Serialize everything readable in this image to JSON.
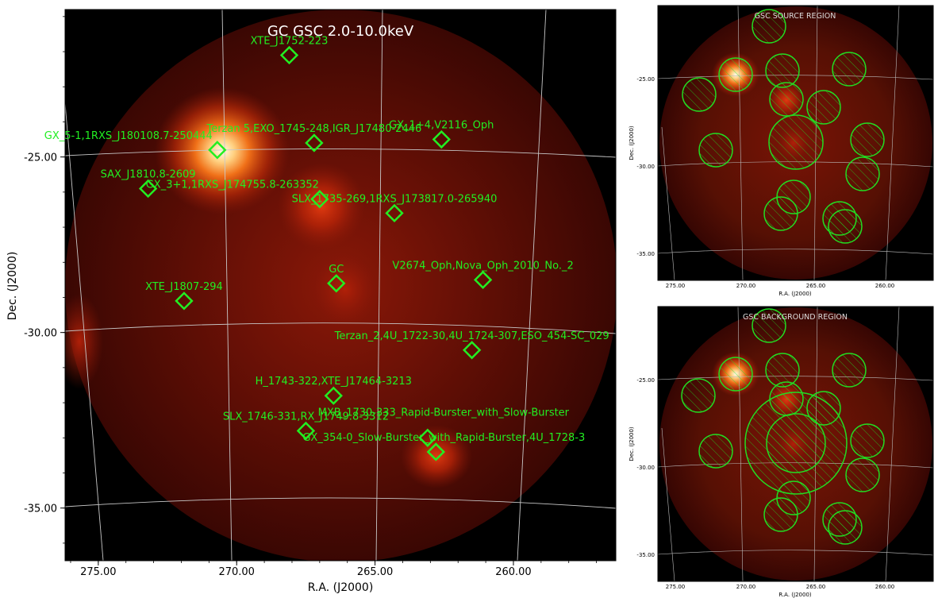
{
  "chart_data": [
    {
      "type": "scatter",
      "title": "GC GSC 2.0-10.0keV",
      "xlabel": "R.A. (J2000)",
      "ylabel": "Dec. (J2000)",
      "xlim": [
        276.2,
        256.3
      ],
      "ylim": [
        -36.5,
        -20.8
      ],
      "x_ticks": [
        "275.00",
        "270.00",
        "265.00",
        "260.00"
      ],
      "y_ticks": [
        "-25.00",
        "-30.00",
        "-35.00"
      ],
      "sources": [
        {
          "label": "XTE_J1752-223",
          "ra": 268.1,
          "dec": -22.1
        },
        {
          "label": "Terzan 5,EXO_1745-248,IGR_J17480-2446",
          "ra": 267.2,
          "dec": -24.6
        },
        {
          "label": "GX_1+4,V2116_Oph",
          "ra": 262.6,
          "dec": -24.5
        },
        {
          "label": "GX_5-1,1RXS_J180108.7-250444",
          "ra": 270.7,
          "dec": -24.8
        },
        {
          "label": "SAX_J1810.8-2609",
          "ra": 273.2,
          "dec": -25.9
        },
        {
          "label": "GX_3+1,1RXS_J174755.8-263352",
          "ra": 267.0,
          "dec": -26.2
        },
        {
          "label": "SLX_1735-269,1RXS_J173817.0-265940",
          "ra": 264.3,
          "dec": -26.6
        },
        {
          "label": "GC",
          "ra": 266.4,
          "dec": -28.6
        },
        {
          "label": "V2674_Oph,Nova_Oph_2010_No._2",
          "ra": 261.1,
          "dec": -28.5
        },
        {
          "label": "XTE_J1807-294",
          "ra": 271.9,
          "dec": -29.1
        },
        {
          "label": "Terzan_2,4U_1722-30,4U_1724-307,ESO_454-SC_029",
          "ra": 261.5,
          "dec": -30.5
        },
        {
          "label": "H_1743-322,XTE_J17464-3213",
          "ra": 266.5,
          "dec": -31.8
        },
        {
          "label": "SLX_1746-331,RX_J1749.8-3312",
          "ra": 267.5,
          "dec": -32.8
        },
        {
          "label": "MXB_1730-333_Rapid-Burster_with_Slow-Burster",
          "ra": 263.1,
          "dec": -33.0
        },
        {
          "label": "GX_354-0_Slow-Burster_with_Rapid-Burster,4U_1728-3",
          "ra": 262.8,
          "dec": -33.4
        }
      ],
      "label_text_color": "#22ee22",
      "marker_color": "#22ee22",
      "grid": true
    },
    {
      "type": "scatter",
      "title": "GSC SOURCE REGION",
      "xlabel": "R.A. (J2000)",
      "ylabel": "Dec. (J2000)",
      "x_ticks": [
        "275.00",
        "270.00",
        "265.00",
        "260.00"
      ],
      "y_ticks": [
        "-25.00",
        "-30.00",
        "-35.00"
      ],
      "regions": "circles",
      "region_color": "#22dd22",
      "grid": true
    },
    {
      "type": "scatter",
      "title": "GSC BACKGROUND REGION",
      "xlabel": "R.A. (J2000)",
      "ylabel": "Dec. (J2000)",
      "x_ticks": [
        "275.00",
        "270.00",
        "265.00",
        "260.00"
      ],
      "y_ticks": [
        "-25.00",
        "-30.00",
        "-35.00"
      ],
      "regions": "circles",
      "region_color": "#22dd22",
      "grid": true
    }
  ]
}
